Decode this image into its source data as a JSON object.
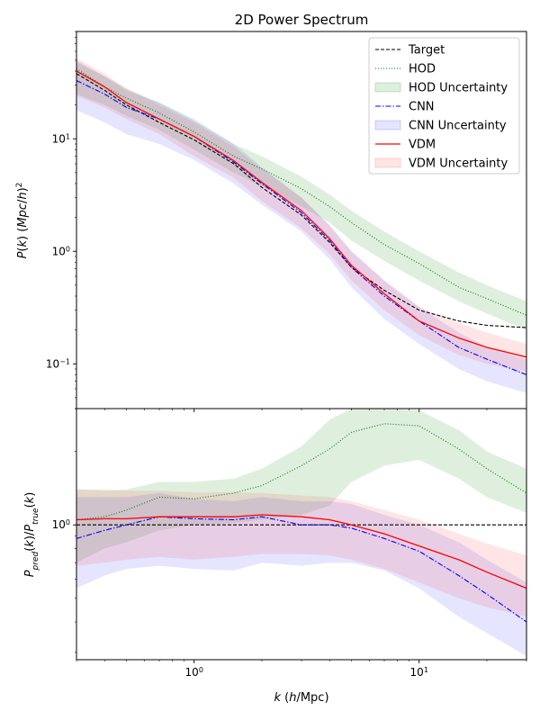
{
  "title": "2D Power Spectrum",
  "xlabel": "k (h/Mpc)",
  "colors": {
    "target": "#000000",
    "hod": "#008000",
    "cnn": "#0000ff",
    "vdm": "#ff0000",
    "hod_band": "#008000",
    "cnn_band": "#3333ff",
    "vdm_band": "#ff3333"
  },
  "legend": {
    "placement": "top-right",
    "entries": [
      "Target",
      "HOD",
      "HOD Uncertainty",
      "CNN",
      "CNN Uncertainty",
      "VDM",
      "VDM Uncertainty"
    ]
  },
  "chart_data": [
    {
      "type": "line",
      "panel": "top",
      "title": "2D Power Spectrum",
      "xlabel": "",
      "ylabel": "P(k) (Mpc/h)^2",
      "xscale": "log",
      "yscale": "log",
      "xlim": [
        0.3,
        30
      ],
      "ylim": [
        0.04,
        90
      ],
      "xticks": [
        "10^0",
        "10^1"
      ],
      "yticks": [
        {
          "value": 0.1,
          "label": "10^-1"
        },
        {
          "value": 1,
          "label": "10^0"
        },
        {
          "value": 10,
          "label": "10^1"
        }
      ],
      "x": [
        0.3,
        0.4,
        0.5,
        0.7,
        1.0,
        1.5,
        2.0,
        3.0,
        4.0,
        5.0,
        7.0,
        10.0,
        15.0,
        20.0,
        30.0
      ],
      "series": [
        {
          "name": "Target",
          "style": "dashed",
          "color_key": "target",
          "values": [
            38,
            27,
            20,
            14,
            9.8,
            6.0,
            3.7,
            2.1,
            1.2,
            0.72,
            0.45,
            0.3,
            0.24,
            0.22,
            0.21
          ]
        },
        {
          "name": "HOD",
          "style": "dotted",
          "color_key": "hod",
          "values": [
            42,
            29,
            23,
            17,
            11.5,
            7.0,
            5.4,
            3.6,
            2.5,
            1.8,
            1.15,
            0.78,
            0.48,
            0.38,
            0.27
          ],
          "band_name": "HOD Uncertainty",
          "band_lower": [
            25,
            20,
            16,
            12,
            8.0,
            5.0,
            3.8,
            2.5,
            1.8,
            1.25,
            0.82,
            0.55,
            0.36,
            0.28,
            0.2
          ],
          "band_upper": [
            50,
            36,
            28,
            21,
            14.5,
            9.0,
            7.0,
            4.6,
            3.2,
            2.3,
            1.5,
            1.0,
            0.65,
            0.5,
            0.36
          ]
        },
        {
          "name": "CNN",
          "style": "dashdot",
          "color_key": "cnn",
          "values": [
            33,
            25,
            19,
            15,
            10.5,
            6.2,
            4.0,
            2.2,
            1.25,
            0.72,
            0.4,
            0.24,
            0.14,
            0.11,
            0.08
          ],
          "band_name": "CNN Uncertainty",
          "band_lower": [
            18,
            14,
            11,
            9,
            6.5,
            4.0,
            2.6,
            1.5,
            0.85,
            0.48,
            0.25,
            0.15,
            0.09,
            0.07,
            0.055
          ],
          "band_upper": [
            48,
            36,
            27,
            21,
            15.0,
            9.0,
            5.6,
            3.0,
            1.7,
            1.0,
            0.55,
            0.32,
            0.19,
            0.14,
            0.11
          ]
        },
        {
          "name": "VDM",
          "style": "solid",
          "color_key": "vdm",
          "values": [
            40,
            29,
            21,
            15,
            10.5,
            6.4,
            4.1,
            2.3,
            1.3,
            0.75,
            0.42,
            0.24,
            0.17,
            0.14,
            0.115
          ],
          "band_name": "VDM Uncertainty",
          "band_lower": [
            24,
            19,
            15,
            11,
            7.0,
            4.5,
            2.8,
            1.6,
            0.95,
            0.55,
            0.3,
            0.18,
            0.12,
            0.1,
            0.085
          ],
          "band_upper": [
            52,
            38,
            28,
            20,
            14.0,
            8.5,
            5.4,
            3.0,
            1.7,
            1.0,
            0.55,
            0.32,
            0.23,
            0.19,
            0.15
          ]
        }
      ]
    },
    {
      "type": "line",
      "panel": "bottom",
      "title": "",
      "xlabel": "k (h/Mpc)",
      "ylabel": "P_pred(k)/P_true(k)",
      "xscale": "log",
      "yscale": "log",
      "xlim": [
        0.3,
        30
      ],
      "ylim": [
        0.28,
        3.0
      ],
      "xticks": [
        "10^0",
        "10^1"
      ],
      "yticks": [
        {
          "value": 1,
          "label": "10^0"
        }
      ],
      "x": [
        0.3,
        0.4,
        0.5,
        0.7,
        1.0,
        1.5,
        2.0,
        3.0,
        4.0,
        5.0,
        7.0,
        10.0,
        15.0,
        20.0,
        30.0
      ],
      "series": [
        {
          "name": "Target",
          "style": "dashed",
          "color_key": "target",
          "values": [
            1,
            1,
            1,
            1,
            1,
            1,
            1,
            1,
            1,
            1,
            1,
            1,
            1,
            1,
            1
          ]
        },
        {
          "name": "HOD",
          "style": "dotted",
          "color_key": "hod",
          "values": [
            1.05,
            1.08,
            1.15,
            1.3,
            1.28,
            1.35,
            1.45,
            1.75,
            2.05,
            2.4,
            2.6,
            2.55,
            2.05,
            1.7,
            1.35
          ],
          "band_name": "HOD Uncertainty",
          "band_lower": [
            0.7,
            0.8,
            0.85,
            0.95,
            1.0,
            1.02,
            1.05,
            1.1,
            1.2,
            1.5,
            1.75,
            1.85,
            1.55,
            1.3,
            1.12
          ],
          "band_upper": [
            1.4,
            1.38,
            1.4,
            1.5,
            1.5,
            1.55,
            1.7,
            2.1,
            2.7,
            3.0,
            3.0,
            2.95,
            2.45,
            2.0,
            1.7
          ]
        },
        {
          "name": "CNN",
          "style": "dashdot",
          "color_key": "cnn",
          "values": [
            0.88,
            0.95,
            1.0,
            1.08,
            1.06,
            1.05,
            1.08,
            1.0,
            1.0,
            0.97,
            0.88,
            0.78,
            0.62,
            0.52,
            0.4
          ],
          "band_name": "CNN Uncertainty",
          "band_lower": [
            0.55,
            0.62,
            0.66,
            0.68,
            0.66,
            0.65,
            0.7,
            0.68,
            0.7,
            0.7,
            0.65,
            0.55,
            0.42,
            0.36,
            0.29
          ],
          "band_upper": [
            1.3,
            1.3,
            1.3,
            1.35,
            1.28,
            1.25,
            1.3,
            1.25,
            1.25,
            1.22,
            1.1,
            1.0,
            0.85,
            0.72,
            0.58
          ]
        },
        {
          "name": "VDM",
          "style": "solid",
          "color_key": "vdm",
          "values": [
            1.05,
            1.06,
            1.06,
            1.08,
            1.08,
            1.08,
            1.1,
            1.08,
            1.05,
            1.0,
            0.92,
            0.82,
            0.72,
            0.64,
            0.55
          ],
          "band_name": "VDM Uncertainty",
          "band_lower": [
            0.68,
            0.7,
            0.72,
            0.74,
            0.72,
            0.74,
            0.76,
            0.76,
            0.75,
            0.72,
            0.66,
            0.58,
            0.5,
            0.46,
            0.42
          ],
          "band_upper": [
            1.4,
            1.4,
            1.38,
            1.38,
            1.36,
            1.36,
            1.35,
            1.32,
            1.3,
            1.25,
            1.15,
            1.05,
            0.92,
            0.84,
            0.75
          ]
        }
      ]
    }
  ]
}
